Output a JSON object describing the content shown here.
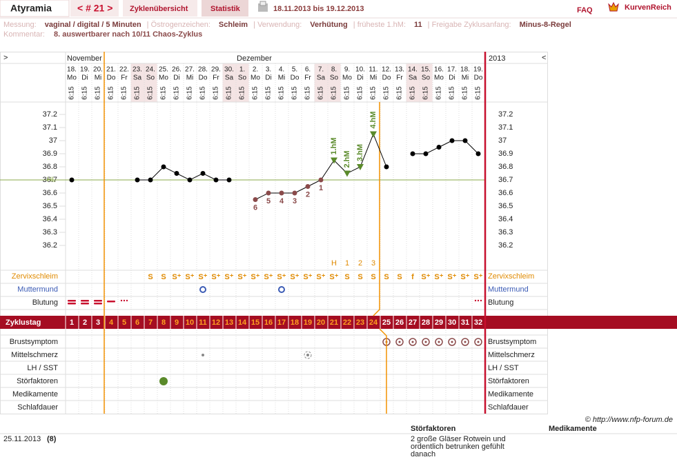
{
  "header": {
    "user": "Atyramia",
    "cycle": "< # 21 >",
    "tabs": [
      "Zyklenübersicht",
      "Statistik"
    ],
    "period": "18.11.2013 bis 19.12.2013",
    "faq": "FAQ",
    "logo": "KurvenReich"
  },
  "info": {
    "items": [
      {
        "label": "Messung:",
        "value": "vaginal / digital / 5 Minuten"
      },
      {
        "label": "Östrogenzeichen:",
        "value": "Schleim"
      },
      {
        "label": "Verwendung:",
        "value": "Verhütung"
      },
      {
        "label": "früheste 1.hM:",
        "value": "11"
      },
      {
        "label": "Freigabe Zyklusanfang:",
        "value": "Minus-8-Regel"
      }
    ],
    "comment_label": "Kommentar:",
    "comment": "8. auswertbarer nach 10/11 Chaos-Zyklus"
  },
  "chart_data": {
    "type": "line",
    "nav_left": ">",
    "nav_right": "<",
    "months": [
      "November",
      "Dezember"
    ],
    "year": "2013",
    "categories": [
      "18.",
      "19.",
      "20.",
      "21.",
      "22.",
      "23.",
      "24.",
      "25.",
      "26.",
      "27.",
      "28.",
      "29.",
      "30.",
      "1.",
      "2.",
      "3.",
      "4.",
      "5.",
      "6.",
      "7.",
      "8.",
      "9.",
      "10.",
      "11.",
      "12.",
      "13.",
      "14.",
      "15.",
      "16.",
      "17.",
      "18.",
      "19."
    ],
    "weekdays": [
      "Mo",
      "Di",
      "Mi",
      "Do",
      "Fr",
      "Sa",
      "So",
      "Mo",
      "Di",
      "Mi",
      "Do",
      "Fr",
      "Sa",
      "So",
      "Mo",
      "Di",
      "Mi",
      "Do",
      "Fr",
      "Sa",
      "So",
      "Mo",
      "Di",
      "Mi",
      "Do",
      "Fr",
      "Sa",
      "So",
      "Mo",
      "Di",
      "Mi",
      "Do"
    ],
    "times": [
      "6:15",
      "6:15",
      "6:15",
      "6:15",
      "6:15",
      "6:15",
      "6:15",
      "6:15",
      "6:15",
      "6:15",
      "6:15",
      "6:15",
      "6:15",
      "6:15",
      "6:15",
      "6:15",
      "6:15",
      "6:15",
      "6:15",
      "6:15",
      "6:15",
      "6:15",
      "6:15",
      "6:15",
      "6:15",
      "6:15",
      "6:15",
      "6:15",
      "6:15",
      "6:15",
      "6:15",
      "6:15"
    ],
    "values": [
      36.7,
      null,
      null,
      null,
      null,
      36.7,
      36.7,
      36.8,
      36.75,
      36.7,
      36.75,
      36.7,
      36.7,
      null,
      36.55,
      36.6,
      36.6,
      36.6,
      36.65,
      36.7,
      36.85,
      36.75,
      36.8,
      37.05,
      36.8,
      null,
      36.9,
      36.9,
      36.95,
      37.0,
      37.0,
      36.9
    ],
    "color": "#000000",
    "low_labels": [
      null,
      null,
      null,
      null,
      null,
      null,
      null,
      null,
      null,
      null,
      null,
      null,
      null,
      null,
      "6",
      "5",
      "4",
      "3",
      "2",
      "1",
      null,
      null,
      null,
      null,
      null,
      null,
      null,
      null,
      null,
      null,
      null,
      null
    ],
    "hm_labels": [
      null,
      null,
      null,
      null,
      null,
      null,
      null,
      null,
      null,
      null,
      null,
      null,
      null,
      null,
      null,
      null,
      null,
      null,
      null,
      null,
      "1.hM",
      "2.hM",
      "3.hM",
      "4.hM",
      null,
      null,
      null,
      null,
      null,
      null,
      null,
      null
    ],
    "hl": {
      "label": "HL",
      "value": 36.7,
      "color": "#8aa84a"
    },
    "ylim": [
      36.0,
      37.3
    ],
    "yticks": [
      36.2,
      36.3,
      36.4,
      36.5,
      36.6,
      36.7,
      36.8,
      36.9,
      37,
      37.1,
      37.2
    ],
    "peak": [
      null,
      null,
      null,
      null,
      null,
      null,
      null,
      null,
      null,
      null,
      null,
      null,
      null,
      null,
      null,
      null,
      null,
      null,
      null,
      null,
      "H",
      "1",
      "2",
      "3",
      null,
      null,
      null,
      null,
      null,
      null,
      null,
      null
    ],
    "mucus": [
      null,
      null,
      null,
      null,
      null,
      null,
      "S",
      "S",
      "S⁺",
      "S⁺",
      "S⁺",
      "S⁺",
      "S⁺",
      "S⁺",
      "S⁺",
      "S⁺",
      "S⁺",
      "S⁺",
      "S⁺",
      "S⁺",
      "S⁺",
      "S",
      "S",
      "S",
      "S",
      "S",
      "f",
      "S⁺",
      "S⁺",
      "S⁺",
      "S⁺",
      "S⁺"
    ],
    "rows_top": [
      "Zervixschleim",
      "Muttermund",
      "Blutung"
    ],
    "cycle_label": "Zyklustag",
    "cycle_days": [
      1,
      2,
      3,
      4,
      5,
      6,
      7,
      8,
      9,
      10,
      11,
      12,
      13,
      14,
      15,
      16,
      17,
      18,
      19,
      20,
      21,
      22,
      23,
      24,
      25,
      26,
      27,
      28,
      29,
      30,
      31,
      32
    ],
    "rows_bottom": [
      "Brustsymptom",
      "Mittelschmerz",
      "LH / SST",
      "Störfaktoren",
      "Medikamente",
      "Schlafdauer"
    ]
  },
  "footer": {
    "copyright": "© http://www.nfp-forum.de",
    "columns": [
      "Störfaktoren",
      "Medikamente"
    ],
    "date": "25.11.2013",
    "day": "(8)",
    "note": [
      "2 große Gläser Rotwein und",
      "ordentlich betrunken gefühlt",
      "danach"
    ]
  }
}
